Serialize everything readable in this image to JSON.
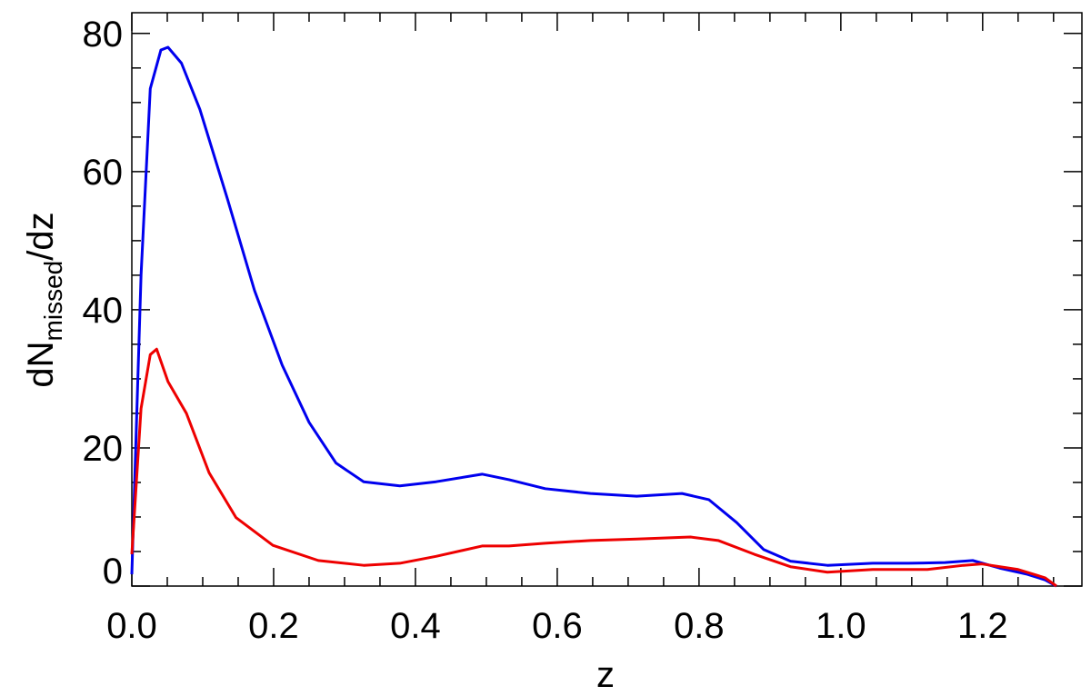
{
  "chart_data": {
    "type": "line",
    "xlabel": "z",
    "ylabel": [
      "dN",
      "missed",
      "/dz"
    ],
    "xlim": [
      0,
      1.34
    ],
    "ylim": [
      0,
      83
    ],
    "xticks": [
      {
        "value": 0,
        "label": "0.0"
      },
      {
        "value": 0.2,
        "label": "0.2"
      },
      {
        "value": 0.4,
        "label": "0.4"
      },
      {
        "value": 0.6,
        "label": "0.6"
      },
      {
        "value": 0.8,
        "label": "0.8"
      },
      {
        "value": 1.0,
        "label": "1.0"
      },
      {
        "value": 1.2,
        "label": "1.2"
      }
    ],
    "yticks": [
      0,
      20,
      40,
      60,
      80
    ],
    "xminorticks": [
      0.05,
      0.1,
      0.15,
      0.25,
      0.3,
      0.35,
      0.45,
      0.5,
      0.55,
      0.65,
      0.7,
      0.75,
      0.85,
      0.9,
      0.95,
      1.05,
      1.1,
      1.15,
      1.25,
      1.3
    ],
    "yminorticks": [
      5,
      10,
      15,
      25,
      30,
      35,
      45,
      50,
      55,
      65,
      70,
      75
    ],
    "series": [
      {
        "color": "#0000ee",
        "x": [
          0,
          0.013,
          0.026,
          0.041,
          0.051,
          0.07,
          0.096,
          0.135,
          0.173,
          0.212,
          0.25,
          0.288,
          0.327,
          0.378,
          0.429,
          0.494,
          0.532,
          0.583,
          0.647,
          0.712,
          0.776,
          0.814,
          0.853,
          0.891,
          0.929,
          0.981,
          1.045,
          1.096,
          1.147,
          1.186,
          1.224,
          1.263,
          1.288,
          1.304
        ],
        "values": [
          1.7,
          45,
          72,
          77.6,
          78,
          75.7,
          69,
          56,
          42.8,
          32,
          23.7,
          17.8,
          15.1,
          14.5,
          15.1,
          16.2,
          15.4,
          14.1,
          13.4,
          13.0,
          13.4,
          12.5,
          9.2,
          5.3,
          3.6,
          3.0,
          3.3,
          3.3,
          3.4,
          3.7,
          2.6,
          1.7,
          0.9,
          0
        ]
      },
      {
        "color": "#ee0000",
        "x": [
          0,
          0.013,
          0.026,
          0.035,
          0.051,
          0.077,
          0.109,
          0.147,
          0.199,
          0.263,
          0.327,
          0.378,
          0.429,
          0.494,
          0.532,
          0.583,
          0.647,
          0.712,
          0.788,
          0.827,
          0.878,
          0.929,
          0.981,
          1.045,
          1.122,
          1.173,
          1.199,
          1.25,
          1.288,
          1.304
        ],
        "values": [
          4.6,
          25.7,
          33.5,
          34.3,
          29.6,
          25,
          16.4,
          9.9,
          5.9,
          3.7,
          3.0,
          3.3,
          4.3,
          5.8,
          5.8,
          6.2,
          6.6,
          6.8,
          7.1,
          6.6,
          4.6,
          2.8,
          2.0,
          2.4,
          2.4,
          3.0,
          3.2,
          2.4,
          1.2,
          0
        ]
      }
    ]
  }
}
